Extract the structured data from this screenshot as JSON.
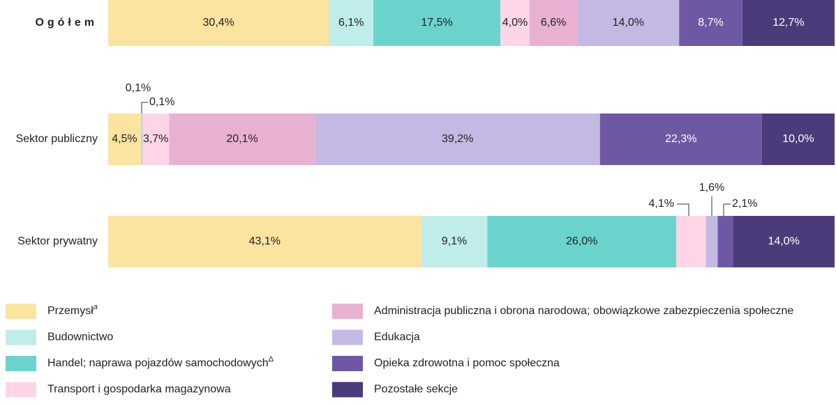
{
  "chart_data": {
    "type": "stacked-bar-horizontal",
    "categories": [
      "Ogółem",
      "Sektor publiczny",
      "Sektor prywatny"
    ],
    "xlim": [
      0,
      100
    ],
    "series": [
      {
        "name": "Przemysł",
        "note": "a",
        "color": "#fbe3a0",
        "values": [
          30.4,
          4.5,
          43.1
        ],
        "value_labels": [
          "30,4%",
          "4,5%",
          "43,1%"
        ]
      },
      {
        "name": "Budownictwo",
        "color": "#bfedea",
        "values": [
          6.1,
          0.1,
          9.1
        ],
        "value_labels": [
          "6,1%",
          "0,1%",
          "9,1%"
        ]
      },
      {
        "name": "Handel; naprawa pojazdów samochodowych",
        "note": "Δ",
        "color": "#6ad4cc",
        "values": [
          17.5,
          0.1,
          26.0
        ],
        "value_labels": [
          "17,5%",
          "0,1%",
          "26,0%"
        ]
      },
      {
        "name": "Transport i gospodarka magazynowa",
        "color": "#fdd5e6",
        "values": [
          4.0,
          3.7,
          4.1
        ],
        "value_labels": [
          "4,0%",
          "3,7%",
          "4,1%"
        ]
      },
      {
        "name": "Administracja publiczna i obrona narodowa; obowiązkowe zabezpieczenia społeczne",
        "color": "#e8b1d2",
        "values": [
          6.6,
          20.1,
          null
        ],
        "value_labels": [
          "6,6%",
          "20,1%",
          null
        ]
      },
      {
        "name": "Edukacja",
        "color": "#c4b9e3",
        "values": [
          14.0,
          39.2,
          1.6
        ],
        "value_labels": [
          "14,0%",
          "39,2%",
          "1,6%"
        ]
      },
      {
        "name": "Opieka zdrowotna i pomoc społeczna",
        "color": "#6e58a3",
        "values": [
          8.7,
          22.3,
          2.1
        ],
        "value_labels": [
          "8,7%",
          "22,3%",
          "2,1%"
        ]
      },
      {
        "name": "Pozostałe sekcje",
        "color": "#4b3b7a",
        "values": [
          12.7,
          10.0,
          14.0
        ],
        "value_labels": [
          "12,7%",
          "10,0%",
          "14,0%"
        ]
      }
    ]
  }
}
